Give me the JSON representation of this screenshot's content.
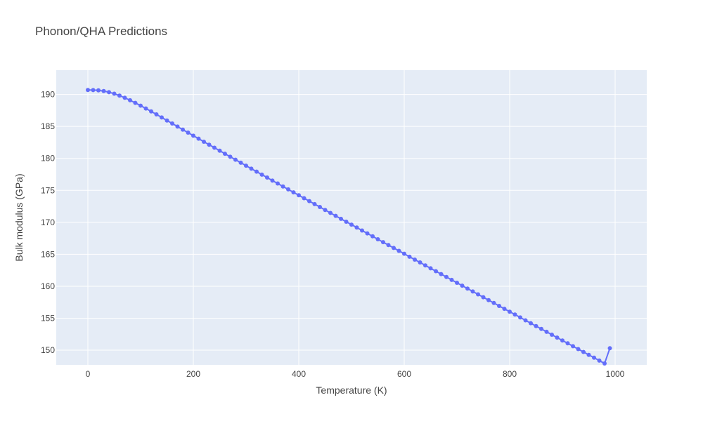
{
  "chart_data": {
    "type": "scatter",
    "mode": "lines+markers",
    "title": "Phonon/QHA Predictions",
    "xlabel": "Temperature (K)",
    "ylabel": "Bulk modulus (GPa)",
    "xlim": [
      -60,
      1060
    ],
    "ylim": [
      147.7,
      193.8
    ],
    "xticks": [
      0,
      200,
      400,
      600,
      800,
      1000
    ],
    "xtick_labels": [
      "0",
      "200",
      "400",
      "600",
      "800",
      "1000"
    ],
    "yticks": [
      150,
      155,
      160,
      165,
      170,
      175,
      180,
      185,
      190
    ],
    "ytick_labels": [
      "150",
      "155",
      "160",
      "165",
      "170",
      "175",
      "180",
      "185",
      "190"
    ],
    "grid": true,
    "background_color": "#E5ECF6",
    "series": [
      {
        "color": "#636EFA",
        "x": [
          0,
          10,
          20,
          30,
          40,
          50,
          60,
          70,
          80,
          90,
          100,
          110,
          120,
          130,
          140,
          150,
          160,
          170,
          180,
          190,
          200,
          210,
          220,
          230,
          240,
          250,
          260,
          270,
          280,
          290,
          300,
          310,
          320,
          330,
          340,
          350,
          360,
          370,
          380,
          390,
          400,
          410,
          420,
          430,
          440,
          450,
          460,
          470,
          480,
          490,
          500,
          510,
          520,
          530,
          540,
          550,
          560,
          570,
          580,
          590,
          600,
          610,
          620,
          630,
          640,
          650,
          660,
          670,
          680,
          690,
          700,
          710,
          720,
          730,
          740,
          750,
          760,
          770,
          780,
          790,
          800,
          810,
          820,
          830,
          840,
          850,
          860,
          870,
          880,
          890,
          900,
          910,
          920,
          930,
          940,
          950,
          960,
          970,
          980,
          990
        ],
        "y": [
          190.7,
          190.69,
          190.64,
          190.53,
          190.36,
          190.12,
          189.82,
          189.48,
          189.09,
          188.68,
          188.25,
          187.8,
          187.35,
          186.88,
          186.41,
          185.93,
          185.46,
          184.98,
          184.5,
          184.03,
          183.55,
          183.08,
          182.61,
          182.14,
          181.67,
          181.2,
          180.73,
          180.26,
          179.79,
          179.32,
          178.86,
          178.39,
          177.93,
          177.46,
          177.0,
          176.53,
          176.07,
          175.61,
          175.15,
          174.69,
          174.23,
          173.77,
          173.31,
          172.85,
          172.39,
          171.93,
          171.47,
          171.01,
          170.55,
          170.09,
          169.64,
          169.18,
          168.72,
          168.27,
          167.81,
          167.35,
          166.9,
          166.44,
          165.99,
          165.53,
          165.08,
          164.62,
          164.17,
          163.72,
          163.26,
          162.81,
          162.35,
          161.9,
          161.45,
          160.99,
          160.54,
          160.09,
          159.64,
          159.18,
          158.73,
          158.28,
          157.83,
          157.38,
          156.92,
          156.47,
          156.02,
          155.57,
          155.12,
          154.67,
          154.22,
          153.77,
          153.32,
          152.87,
          152.42,
          151.97,
          151.52,
          151.07,
          150.62,
          150.17,
          149.72,
          149.27,
          148.82,
          148.37,
          147.92,
          150.3
        ]
      }
    ]
  }
}
